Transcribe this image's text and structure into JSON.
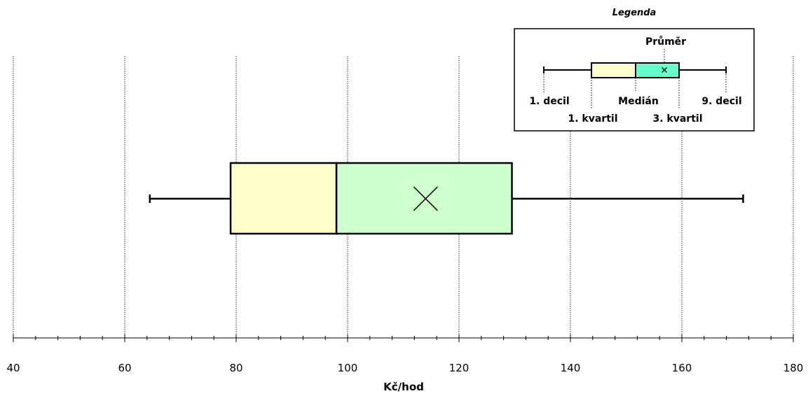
{
  "chart_data": {
    "type": "boxplot",
    "xlabel": "Kč/hod",
    "xlim": [
      40,
      180
    ],
    "x_ticks": [
      "40",
      "60",
      "80",
      "100",
      "120",
      "140",
      "160",
      "180"
    ],
    "grid": "vertical dotted at major ticks",
    "box": {
      "decile_1": 64.5,
      "quartile_1": 79,
      "median": 98,
      "mean": 114,
      "quartile_3": 129.5,
      "decile_9": 171
    },
    "colors": {
      "lower_box": "#FFFFCC",
      "upper_box": "#CCFFCC",
      "legend_upper_box": "#66FFCC",
      "line": "#000000"
    },
    "legend": {
      "title": "Legenda",
      "placement": "top-right",
      "labels": {
        "mean": "Průměr",
        "decile_1": "1. decil",
        "median": "Medián",
        "decile_9": "9. decil",
        "quartile_1": "1. kvartil",
        "quartile_3": "3. kvartil"
      }
    }
  }
}
